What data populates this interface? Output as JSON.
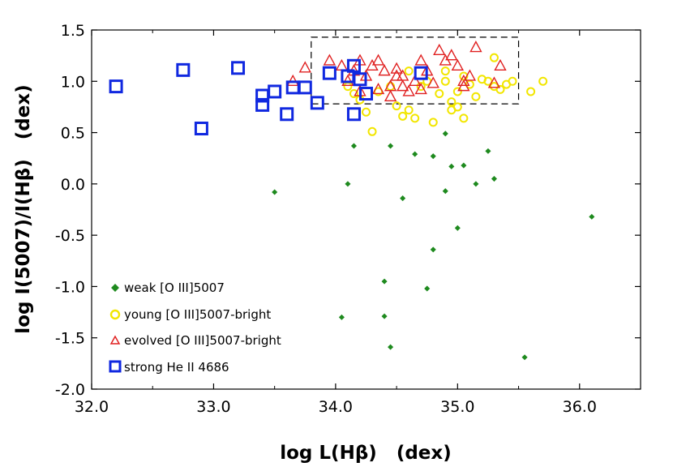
{
  "chart_data": {
    "type": "scatter",
    "title": "",
    "xlabel": "log L(Hβ)   (dex)",
    "ylabel": "log I(5007)/I(Hβ)   (dex)",
    "xlim": [
      32.0,
      36.5
    ],
    "ylim": [
      -2.0,
      1.5
    ],
    "xticks": [
      "32.0",
      "33.0",
      "34.0",
      "35.0",
      "36.0"
    ],
    "yticks": [
      "1.5",
      "1.0",
      "0.5",
      "0.0",
      "-0.5",
      "-1.0",
      "-1.5",
      "-2.0"
    ],
    "grid": false,
    "legend_position": "bottom-left",
    "highlight_box": {
      "x": [
        33.8,
        35.5
      ],
      "y": [
        0.78,
        1.43
      ],
      "style": "dashed"
    },
    "series": [
      {
        "name": "weak [O III]5007",
        "marker": "diamond",
        "color": "#1e8a1e",
        "points": [
          [
            33.5,
            -0.08
          ],
          [
            34.1,
            0.0
          ],
          [
            34.15,
            0.37
          ],
          [
            34.45,
            0.37
          ],
          [
            34.65,
            0.29
          ],
          [
            34.8,
            0.27
          ],
          [
            34.9,
            0.49
          ],
          [
            34.95,
            0.17
          ],
          [
            35.05,
            0.18
          ],
          [
            34.55,
            -0.14
          ],
          [
            34.9,
            -0.07
          ],
          [
            35.15,
            0.0
          ],
          [
            35.3,
            0.05
          ],
          [
            35.25,
            0.32
          ],
          [
            35.0,
            -0.43
          ],
          [
            34.8,
            -0.64
          ],
          [
            34.4,
            -0.95
          ],
          [
            34.75,
            -1.02
          ],
          [
            34.05,
            -1.3
          ],
          [
            34.4,
            -1.29
          ],
          [
            34.45,
            -1.59
          ],
          [
            35.55,
            -1.69
          ],
          [
            36.1,
            -0.32
          ]
        ]
      },
      {
        "name": "young [O III]5007-bright",
        "marker": "circle",
        "color": "#f2e600",
        "points": [
          [
            34.1,
            0.95
          ],
          [
            34.15,
            0.88
          ],
          [
            34.2,
            0.82
          ],
          [
            34.25,
            0.7
          ],
          [
            34.3,
            0.51
          ],
          [
            34.35,
            0.9
          ],
          [
            34.45,
            0.95
          ],
          [
            34.5,
            0.76
          ],
          [
            34.55,
            0.66
          ],
          [
            34.6,
            0.72
          ],
          [
            34.65,
            0.64
          ],
          [
            34.7,
            0.95
          ],
          [
            34.75,
            1.0
          ],
          [
            34.8,
            0.6
          ],
          [
            34.85,
            0.88
          ],
          [
            34.9,
            1.0
          ],
          [
            34.95,
            0.8
          ],
          [
            35.0,
            0.75
          ],
          [
            35.05,
            0.64
          ],
          [
            35.0,
            0.9
          ],
          [
            35.05,
            1.05
          ],
          [
            35.1,
            0.97
          ],
          [
            35.15,
            0.85
          ],
          [
            35.2,
            1.02
          ],
          [
            35.25,
            1.0
          ],
          [
            35.3,
            0.95
          ],
          [
            35.35,
            0.92
          ],
          [
            35.4,
            0.97
          ],
          [
            35.3,
            1.23
          ],
          [
            35.45,
            1.0
          ],
          [
            35.6,
            0.9
          ],
          [
            35.7,
            1.0
          ],
          [
            34.6,
            1.1
          ],
          [
            34.9,
            1.1
          ],
          [
            34.95,
            0.72
          ]
        ]
      },
      {
        "name": "evolved [O III]5007-bright",
        "marker": "triangle",
        "color": "#e02020",
        "points": [
          [
            33.65,
            1.0
          ],
          [
            33.75,
            1.13
          ],
          [
            33.95,
            1.2
          ],
          [
            34.05,
            1.15
          ],
          [
            34.1,
            1.0
          ],
          [
            34.15,
            1.1
          ],
          [
            34.2,
            1.2
          ],
          [
            34.25,
            1.05
          ],
          [
            34.3,
            1.15
          ],
          [
            34.35,
            1.2
          ],
          [
            34.4,
            1.1
          ],
          [
            34.45,
            0.95
          ],
          [
            34.5,
            1.12
          ],
          [
            34.55,
            1.05
          ],
          [
            34.6,
            0.9
          ],
          [
            34.65,
            1.0
          ],
          [
            34.7,
            1.2
          ],
          [
            34.75,
            1.1
          ],
          [
            34.8,
            0.98
          ],
          [
            34.85,
            1.3
          ],
          [
            34.9,
            1.2
          ],
          [
            34.95,
            1.25
          ],
          [
            35.0,
            1.15
          ],
          [
            35.05,
            1.0
          ],
          [
            35.1,
            1.05
          ],
          [
            35.15,
            1.33
          ],
          [
            35.3,
            0.98
          ],
          [
            35.35,
            1.15
          ],
          [
            34.45,
            0.85
          ],
          [
            34.35,
            0.92
          ],
          [
            34.55,
            0.95
          ],
          [
            34.2,
            0.9
          ],
          [
            34.7,
            0.92
          ],
          [
            34.5,
            1.05
          ],
          [
            35.05,
            0.95
          ]
        ]
      },
      {
        "name": "strong He II 4686",
        "marker": "square",
        "color": "#1028e0",
        "points": [
          [
            32.2,
            0.95
          ],
          [
            32.75,
            1.11
          ],
          [
            32.9,
            0.54
          ],
          [
            33.2,
            1.13
          ],
          [
            33.4,
            0.86
          ],
          [
            33.4,
            0.77
          ],
          [
            33.5,
            0.9
          ],
          [
            33.6,
            0.68
          ],
          [
            33.65,
            0.94
          ],
          [
            33.75,
            0.94
          ],
          [
            33.85,
            0.79
          ],
          [
            33.95,
            1.08
          ],
          [
            34.1,
            1.05
          ],
          [
            34.15,
            1.15
          ],
          [
            34.2,
            1.02
          ],
          [
            34.25,
            0.88
          ],
          [
            34.15,
            0.68
          ],
          [
            34.7,
            1.08
          ]
        ]
      }
    ]
  }
}
